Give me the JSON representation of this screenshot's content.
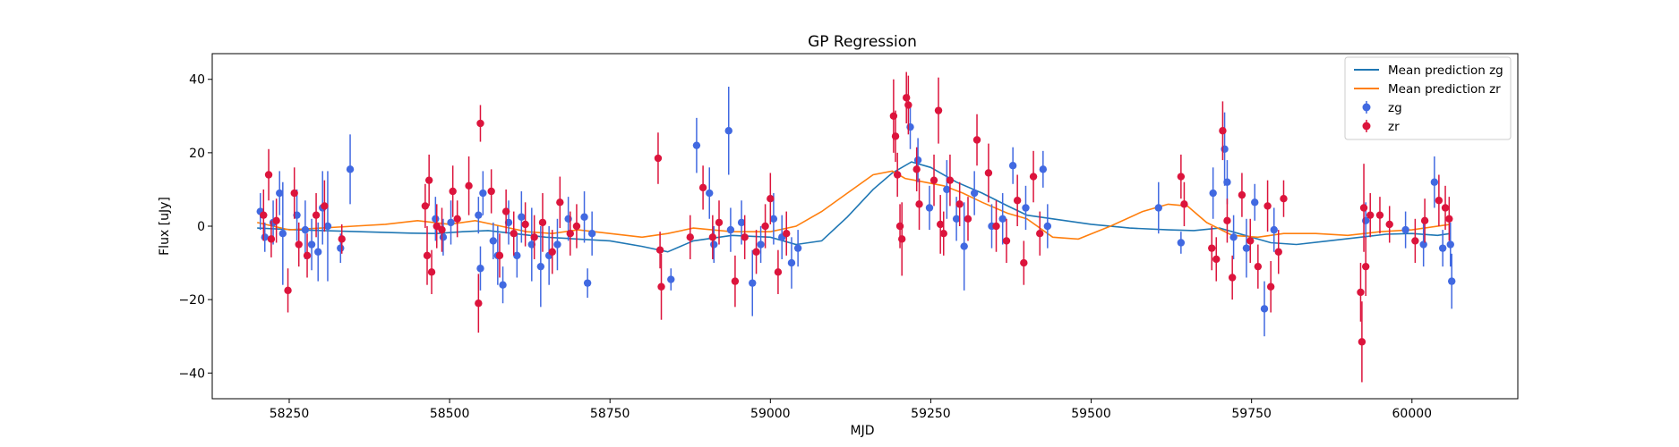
{
  "chart_data": {
    "type": "scatter",
    "title": "GP Regression",
    "xlabel": "MJD",
    "ylabel": "Flux [uJy]",
    "xlim": [
      58130,
      60165
    ],
    "ylim": [
      -47,
      47
    ],
    "xticks": [
      58250,
      58500,
      58750,
      59000,
      59250,
      59500,
      59750,
      60000
    ],
    "yticks": [
      -40,
      -20,
      0,
      20,
      40
    ],
    "grid": false,
    "legend_position": "top-right",
    "colors": {
      "zg_line": "#1f77b4",
      "zr_line": "#ff7f0e",
      "zg_points": "#4169e1",
      "zr_points": "#dc143c"
    },
    "series": [
      {
        "name": "Mean prediction zg",
        "kind": "line",
        "x": [
          58200,
          58260,
          58320,
          58380,
          58440,
          58480,
          58520,
          58560,
          58600,
          58650,
          58700,
          58750,
          58800,
          58840,
          58880,
          58940,
          59000,
          59040,
          59080,
          59120,
          59160,
          59190,
          59220,
          59250,
          59290,
          59330,
          59370,
          59400,
          59440,
          59500,
          59560,
          59620,
          59660,
          59700,
          59740,
          59780,
          59820,
          59870,
          59920,
          59960,
          60000,
          60040,
          60060
        ],
        "y": [
          -0.5,
          -1.0,
          -1.3,
          -1.6,
          -1.9,
          -2.0,
          -1.5,
          -1.2,
          -2.0,
          -3.0,
          -3.5,
          -4.0,
          -5.5,
          -7.0,
          -4.0,
          -2.5,
          -3.0,
          -5.0,
          -4.0,
          2.5,
          10.0,
          14.5,
          17.5,
          16.0,
          12.0,
          9.0,
          5.5,
          3.0,
          2.0,
          0.5,
          -0.5,
          -1.0,
          -1.2,
          -0.5,
          -2.5,
          -4.5,
          -5.0,
          -4.0,
          -3.0,
          -2.2,
          -2.0,
          -2.5,
          -2.0
        ]
      },
      {
        "name": "Mean prediction zr",
        "kind": "line",
        "x": [
          58200,
          58250,
          58300,
          58350,
          58400,
          58450,
          58500,
          58540,
          58580,
          58620,
          58660,
          58700,
          58750,
          58800,
          58840,
          58880,
          58940,
          59000,
          59040,
          59080,
          59120,
          59160,
          59190,
          59210,
          59240,
          59270,
          59300,
          59330,
          59370,
          59400,
          59440,
          59480,
          59530,
          59580,
          59620,
          59650,
          59680,
          59720,
          59760,
          59800,
          59850,
          59900,
          59950,
          60000,
          60060
        ],
        "y": [
          1.0,
          -1.0,
          -0.5,
          0.0,
          0.5,
          1.5,
          0.5,
          1.5,
          0.0,
          -1.5,
          -2.0,
          -1.0,
          -2.0,
          -3.0,
          -2.0,
          -0.5,
          -1.5,
          -1.5,
          0.0,
          4.0,
          9.0,
          14.0,
          15.0,
          13.0,
          12.0,
          11.0,
          9.0,
          6.5,
          3.5,
          2.0,
          -3.0,
          -3.5,
          0.0,
          4.0,
          6.0,
          5.5,
          1.0,
          -2.5,
          -3.0,
          -2.0,
          -2.0,
          -2.5,
          -1.5,
          -1.0,
          0.5
        ]
      },
      {
        "name": "zg",
        "kind": "errorbar",
        "points": [
          {
            "x": 58205,
            "y": 4,
            "err": 5
          },
          {
            "x": 58212,
            "y": -3,
            "err": 4
          },
          {
            "x": 58225,
            "y": 1,
            "err": 6
          },
          {
            "x": 58235,
            "y": 9,
            "err": 6
          },
          {
            "x": 58240,
            "y": -2,
            "err": 14
          },
          {
            "x": 58262,
            "y": 3,
            "err": 7
          },
          {
            "x": 58275,
            "y": -1,
            "err": 8
          },
          {
            "x": 58285,
            "y": -5,
            "err": 7
          },
          {
            "x": 58295,
            "y": -7,
            "err": 8
          },
          {
            "x": 58302,
            "y": 5,
            "err": 10
          },
          {
            "x": 58310,
            "y": 0,
            "err": 15
          },
          {
            "x": 58330,
            "y": -6,
            "err": 4
          },
          {
            "x": 58345,
            "y": 15.5,
            "err": 9.5
          },
          {
            "x": 58478,
            "y": 2,
            "err": 6
          },
          {
            "x": 58490,
            "y": -3,
            "err": 5
          },
          {
            "x": 58502,
            "y": 1,
            "err": 6
          },
          {
            "x": 58545,
            "y": 3,
            "err": 5
          },
          {
            "x": 58548,
            "y": -11.5,
            "err": 6
          },
          {
            "x": 58552,
            "y": 9,
            "err": 6
          },
          {
            "x": 58568,
            "y": -4,
            "err": 5
          },
          {
            "x": 58575,
            "y": -8,
            "err": 8
          },
          {
            "x": 58583,
            "y": -16,
            "err": 5
          },
          {
            "x": 58592,
            "y": 1,
            "err": 6
          },
          {
            "x": 58605,
            "y": -8,
            "err": 6
          },
          {
            "x": 58612,
            "y": 2.5,
            "err": 7
          },
          {
            "x": 58628,
            "y": -5,
            "err": 10
          },
          {
            "x": 58642,
            "y": -11,
            "err": 11
          },
          {
            "x": 58655,
            "y": -8,
            "err": 8
          },
          {
            "x": 58668,
            "y": -5,
            "err": 7
          },
          {
            "x": 58685,
            "y": 2,
            "err": 6
          },
          {
            "x": 58710,
            "y": 2.5,
            "err": 7
          },
          {
            "x": 58715,
            "y": -15.5,
            "err": 4
          },
          {
            "x": 58722,
            "y": -2,
            "err": 6
          },
          {
            "x": 58845,
            "y": -14.5,
            "err": 3
          },
          {
            "x": 58885,
            "y": 22,
            "err": 7.5
          },
          {
            "x": 58905,
            "y": 9,
            "err": 7
          },
          {
            "x": 58912,
            "y": -5,
            "err": 5
          },
          {
            "x": 58935,
            "y": 26,
            "err": 12
          },
          {
            "x": 58938,
            "y": -1,
            "err": 6
          },
          {
            "x": 58955,
            "y": 1,
            "err": 6
          },
          {
            "x": 58972,
            "y": -15.5,
            "err": 9
          },
          {
            "x": 58985,
            "y": -5,
            "err": 5
          },
          {
            "x": 59005,
            "y": 2,
            "err": 7
          },
          {
            "x": 59018,
            "y": -3,
            "err": 6
          },
          {
            "x": 59033,
            "y": -10,
            "err": 7
          },
          {
            "x": 59043,
            "y": -6,
            "err": 5
          },
          {
            "x": 59218,
            "y": 27,
            "err": 6
          },
          {
            "x": 59230,
            "y": 18,
            "err": 6
          },
          {
            "x": 59248,
            "y": 5,
            "err": 6
          },
          {
            "x": 59275,
            "y": 10,
            "err": 8
          },
          {
            "x": 59290,
            "y": 2,
            "err": 6
          },
          {
            "x": 59302,
            "y": -5.5,
            "err": 12
          },
          {
            "x": 59318,
            "y": 9,
            "err": 6
          },
          {
            "x": 59345,
            "y": 0,
            "err": 6
          },
          {
            "x": 59362,
            "y": 2,
            "err": 7
          },
          {
            "x": 59378,
            "y": 16.5,
            "err": 5
          },
          {
            "x": 59398,
            "y": 5,
            "err": 6
          },
          {
            "x": 59425,
            "y": 15.5,
            "err": 5
          },
          {
            "x": 59432,
            "y": 0,
            "err": 6
          },
          {
            "x": 59605,
            "y": 5,
            "err": 7
          },
          {
            "x": 59640,
            "y": -4.5,
            "err": 3
          },
          {
            "x": 59690,
            "y": 9,
            "err": 7
          },
          {
            "x": 59708,
            "y": 21,
            "err": 10
          },
          {
            "x": 59712,
            "y": 12,
            "err": 6
          },
          {
            "x": 59722,
            "y": -3,
            "err": 6
          },
          {
            "x": 59742,
            "y": -6,
            "err": 8
          },
          {
            "x": 59755,
            "y": 6.5,
            "err": 5
          },
          {
            "x": 59770,
            "y": -22.5,
            "err": 7.5
          },
          {
            "x": 59785,
            "y": -1,
            "err": 6
          },
          {
            "x": 59928,
            "y": 1.5,
            "err": 5
          },
          {
            "x": 59990,
            "y": -1,
            "err": 5
          },
          {
            "x": 60018,
            "y": -5,
            "err": 6
          },
          {
            "x": 60035,
            "y": 12,
            "err": 7
          },
          {
            "x": 60048,
            "y": -6,
            "err": 5
          },
          {
            "x": 60062,
            "y": -15,
            "err": 7.5
          },
          {
            "x": 60060,
            "y": -5,
            "err": 6
          }
        ]
      },
      {
        "name": "zr",
        "kind": "errorbar",
        "points": [
          {
            "x": 58210,
            "y": 3,
            "err": 7
          },
          {
            "x": 58218,
            "y": 14,
            "err": 7
          },
          {
            "x": 58222,
            "y": -3.5,
            "err": 5
          },
          {
            "x": 58230,
            "y": 1.5,
            "err": 6
          },
          {
            "x": 58248,
            "y": -17.5,
            "err": 6
          },
          {
            "x": 58258,
            "y": 9,
            "err": 7
          },
          {
            "x": 58265,
            "y": -5,
            "err": 6
          },
          {
            "x": 58278,
            "y": -8,
            "err": 6
          },
          {
            "x": 58292,
            "y": 3,
            "err": 6
          },
          {
            "x": 58305,
            "y": 5.5,
            "err": 7
          },
          {
            "x": 58332,
            "y": -3.5,
            "err": 4
          },
          {
            "x": 58462,
            "y": 5.5,
            "err": 6
          },
          {
            "x": 58465,
            "y": -8,
            "err": 8
          },
          {
            "x": 58468,
            "y": 12.5,
            "err": 7
          },
          {
            "x": 58472,
            "y": -12.5,
            "err": 6
          },
          {
            "x": 58480,
            "y": 0,
            "err": 6
          },
          {
            "x": 58488,
            "y": -1,
            "err": 6
          },
          {
            "x": 58505,
            "y": 9.5,
            "err": 7
          },
          {
            "x": 58512,
            "y": 2,
            "err": 5
          },
          {
            "x": 58530,
            "y": 11,
            "err": 8
          },
          {
            "x": 58545,
            "y": -21,
            "err": 8
          },
          {
            "x": 58548,
            "y": 28,
            "err": 5
          },
          {
            "x": 58565,
            "y": 9.5,
            "err": 6
          },
          {
            "x": 58578,
            "y": -8,
            "err": 6
          },
          {
            "x": 58588,
            "y": 4,
            "err": 6
          },
          {
            "x": 58600,
            "y": -2,
            "err": 6
          },
          {
            "x": 58618,
            "y": 0.5,
            "err": 6
          },
          {
            "x": 58632,
            "y": -3,
            "err": 6
          },
          {
            "x": 58645,
            "y": 1,
            "err": 8
          },
          {
            "x": 58660,
            "y": -7,
            "err": 6
          },
          {
            "x": 58672,
            "y": 6.5,
            "err": 7
          },
          {
            "x": 58688,
            "y": -2,
            "err": 6
          },
          {
            "x": 58698,
            "y": 0,
            "err": 6
          },
          {
            "x": 58825,
            "y": 18.5,
            "err": 7
          },
          {
            "x": 58828,
            "y": -6.5,
            "err": 5
          },
          {
            "x": 58830,
            "y": -16.5,
            "err": 9
          },
          {
            "x": 58875,
            "y": -3,
            "err": 6
          },
          {
            "x": 58895,
            "y": 10.5,
            "err": 6
          },
          {
            "x": 58910,
            "y": -3,
            "err": 6
          },
          {
            "x": 58920,
            "y": 1,
            "err": 6
          },
          {
            "x": 58945,
            "y": -15,
            "err": 7
          },
          {
            "x": 58960,
            "y": -3,
            "err": 6
          },
          {
            "x": 58978,
            "y": -7,
            "err": 6
          },
          {
            "x": 58992,
            "y": 0,
            "err": 6
          },
          {
            "x": 59000,
            "y": 7.5,
            "err": 7
          },
          {
            "x": 59012,
            "y": -12.5,
            "err": 6
          },
          {
            "x": 59025,
            "y": -2,
            "err": 6
          },
          {
            "x": 59192,
            "y": 30,
            "err": 10
          },
          {
            "x": 59195,
            "y": 24.5,
            "err": 7
          },
          {
            "x": 59198,
            "y": 14,
            "err": 6
          },
          {
            "x": 59202,
            "y": 0,
            "err": 6
          },
          {
            "x": 59205,
            "y": -3.5,
            "err": 10
          },
          {
            "x": 59212,
            "y": 35,
            "err": 7
          },
          {
            "x": 59215,
            "y": 33,
            "err": 8
          },
          {
            "x": 59228,
            "y": 15.5,
            "err": 6
          },
          {
            "x": 59232,
            "y": 6,
            "err": 7
          },
          {
            "x": 59255,
            "y": 12.5,
            "err": 7
          },
          {
            "x": 59262,
            "y": 31.5,
            "err": 9
          },
          {
            "x": 59265,
            "y": 0.5,
            "err": 8
          },
          {
            "x": 59270,
            "y": -2,
            "err": 6
          },
          {
            "x": 59280,
            "y": 12.5,
            "err": 7
          },
          {
            "x": 59295,
            "y": 6,
            "err": 6
          },
          {
            "x": 59308,
            "y": 2,
            "err": 6
          },
          {
            "x": 59322,
            "y": 23.5,
            "err": 7
          },
          {
            "x": 59340,
            "y": 14.5,
            "err": 8
          },
          {
            "x": 59352,
            "y": 0,
            "err": 7
          },
          {
            "x": 59368,
            "y": -4,
            "err": 6
          },
          {
            "x": 59385,
            "y": 7,
            "err": 7
          },
          {
            "x": 59395,
            "y": -10,
            "err": 6
          },
          {
            "x": 59410,
            "y": 13.5,
            "err": 7
          },
          {
            "x": 59420,
            "y": -2,
            "err": 6
          },
          {
            "x": 59640,
            "y": 13.5,
            "err": 6
          },
          {
            "x": 59645,
            "y": 6,
            "err": 6
          },
          {
            "x": 59688,
            "y": -6,
            "err": 6
          },
          {
            "x": 59695,
            "y": -9,
            "err": 6
          },
          {
            "x": 59705,
            "y": 26,
            "err": 8
          },
          {
            "x": 59712,
            "y": 1.5,
            "err": 6
          },
          {
            "x": 59720,
            "y": -14,
            "err": 6
          },
          {
            "x": 59735,
            "y": 8.5,
            "err": 6
          },
          {
            "x": 59748,
            "y": -4,
            "err": 6
          },
          {
            "x": 59760,
            "y": -11,
            "err": 6
          },
          {
            "x": 59775,
            "y": 5.5,
            "err": 7
          },
          {
            "x": 59780,
            "y": -16.5,
            "err": 7
          },
          {
            "x": 59792,
            "y": -7,
            "err": 6
          },
          {
            "x": 59800,
            "y": 7.5,
            "err": 5
          },
          {
            "x": 59920,
            "y": -18,
            "err": 8
          },
          {
            "x": 59922,
            "y": -31.5,
            "err": 11
          },
          {
            "x": 59925,
            "y": 5,
            "err": 12
          },
          {
            "x": 59928,
            "y": -11,
            "err": 8
          },
          {
            "x": 59935,
            "y": 3,
            "err": 6
          },
          {
            "x": 59950,
            "y": 3,
            "err": 5
          },
          {
            "x": 59965,
            "y": 0.5,
            "err": 5
          },
          {
            "x": 60005,
            "y": -4,
            "err": 6
          },
          {
            "x": 60020,
            "y": 1.5,
            "err": 6
          },
          {
            "x": 60042,
            "y": 7,
            "err": 7
          },
          {
            "x": 60052,
            "y": 5,
            "err": 6
          },
          {
            "x": 60058,
            "y": 2,
            "err": 6
          }
        ]
      }
    ]
  }
}
